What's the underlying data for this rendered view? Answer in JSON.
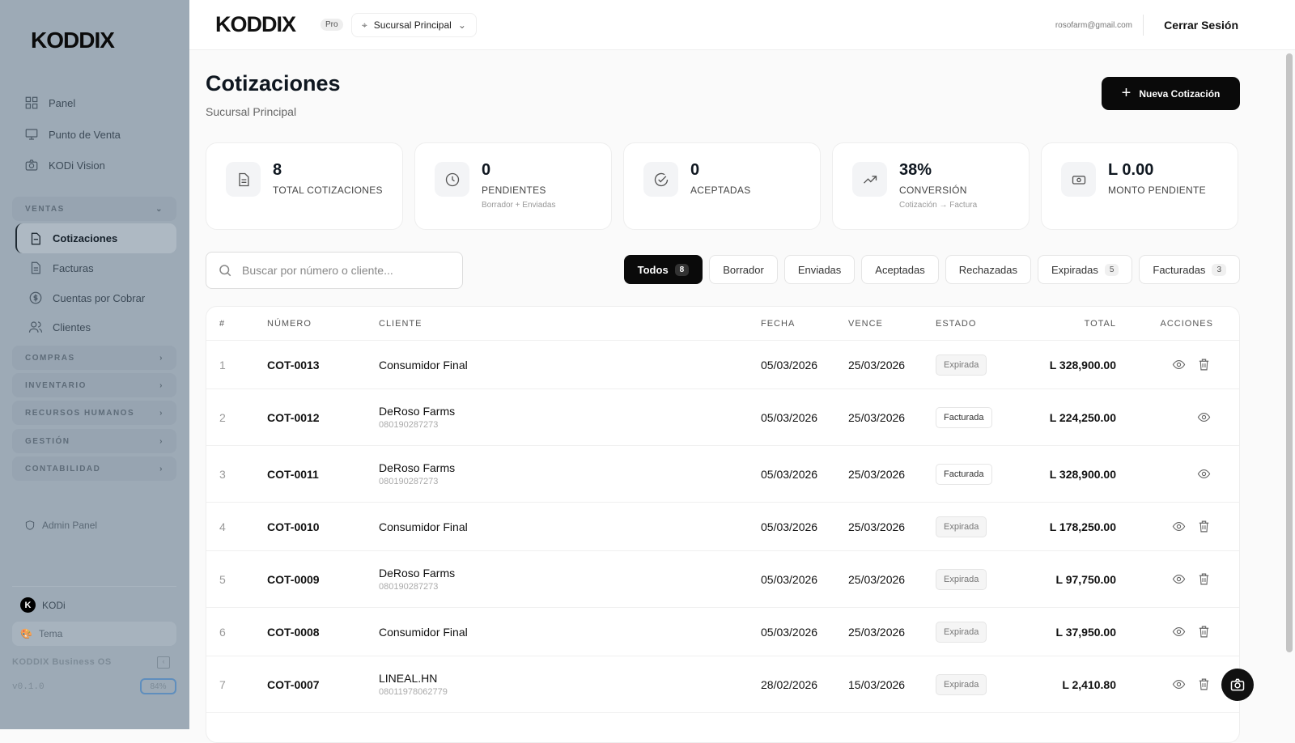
{
  "sidebar": {
    "logo": "KODDIX",
    "items": [
      {
        "label": "Panel"
      },
      {
        "label": "Punto de Venta"
      },
      {
        "label": "KODi Vision"
      }
    ],
    "sections": {
      "ventas": "VENTAS",
      "compras": "COMPRAS",
      "inventario": "INVENTARIO",
      "rrhh": "RECURSOS HUMANOS",
      "gestion": "GESTIÓN",
      "contabilidad": "CONTABILIDAD"
    },
    "ventas_items": [
      {
        "label": "Cotizaciones"
      },
      {
        "label": "Facturas"
      },
      {
        "label": "Cuentas por Cobrar"
      },
      {
        "label": "Clientes"
      }
    ],
    "admin": "Admin Panel",
    "user": "KODi",
    "theme": "Tema",
    "brand": "KODDIX Business OS",
    "version": "v0.1.0",
    "zoom": "84%"
  },
  "topbar": {
    "logo": "KODDIX",
    "plan": "Pro",
    "branch": "Sucursal Principal",
    "email": "rosofarm@gmail.com",
    "logout": "Cerrar Sesión"
  },
  "page": {
    "title": "Cotizaciones",
    "subtitle": "Sucursal Principal",
    "new_button": "Nueva Cotización"
  },
  "stats": [
    {
      "value": "8",
      "label": "TOTAL COTIZACIONES",
      "hint": ""
    },
    {
      "value": "0",
      "label": "PENDIENTES",
      "hint": "Borrador + Enviadas"
    },
    {
      "value": "0",
      "label": "ACEPTADAS",
      "hint": ""
    },
    {
      "value": "38%",
      "label": "CONVERSIÓN",
      "hint": "Cotización → Factura"
    },
    {
      "value": "L 0.00",
      "label": "MONTO PENDIENTE",
      "hint": ""
    }
  ],
  "search": {
    "placeholder": "Buscar por número o cliente..."
  },
  "filters": [
    {
      "label": "Todos",
      "count": "8"
    },
    {
      "label": "Borrador"
    },
    {
      "label": "Enviadas"
    },
    {
      "label": "Aceptadas"
    },
    {
      "label": "Rechazadas"
    },
    {
      "label": "Expiradas",
      "count": "5"
    },
    {
      "label": "Facturadas",
      "count": "3"
    }
  ],
  "table": {
    "headers": [
      "#",
      "NÚMERO",
      "CLIENTE",
      "FECHA",
      "VENCE",
      "ESTADO",
      "TOTAL",
      "ACCIONES"
    ],
    "rows": [
      {
        "n": "1",
        "code": "COT-0013",
        "client": "Consumidor Final",
        "rtn": "",
        "date": "05/03/2026",
        "due": "25/03/2026",
        "status": "Expirada",
        "total": "L 328,900.00",
        "delete": true
      },
      {
        "n": "2",
        "code": "COT-0012",
        "client": "DeRoso Farms",
        "rtn": "080190287273",
        "date": "05/03/2026",
        "due": "25/03/2026",
        "status": "Facturada",
        "total": "L 224,250.00",
        "delete": false
      },
      {
        "n": "3",
        "code": "COT-0011",
        "client": "DeRoso Farms",
        "rtn": "080190287273",
        "date": "05/03/2026",
        "due": "25/03/2026",
        "status": "Facturada",
        "total": "L 328,900.00",
        "delete": false
      },
      {
        "n": "4",
        "code": "COT-0010",
        "client": "Consumidor Final",
        "rtn": "",
        "date": "05/03/2026",
        "due": "25/03/2026",
        "status": "Expirada",
        "total": "L 178,250.00",
        "delete": true
      },
      {
        "n": "5",
        "code": "COT-0009",
        "client": "DeRoso Farms",
        "rtn": "080190287273",
        "date": "05/03/2026",
        "due": "25/03/2026",
        "status": "Expirada",
        "total": "L 97,750.00",
        "delete": true
      },
      {
        "n": "6",
        "code": "COT-0008",
        "client": "Consumidor Final",
        "rtn": "",
        "date": "05/03/2026",
        "due": "25/03/2026",
        "status": "Expirada",
        "total": "L 37,950.00",
        "delete": true
      },
      {
        "n": "7",
        "code": "COT-0007",
        "client": "LINEAL.HN",
        "rtn": "08011978062779",
        "date": "28/02/2026",
        "due": "15/03/2026",
        "status": "Expirada",
        "total": "L 2,410.80",
        "delete": true
      }
    ]
  }
}
